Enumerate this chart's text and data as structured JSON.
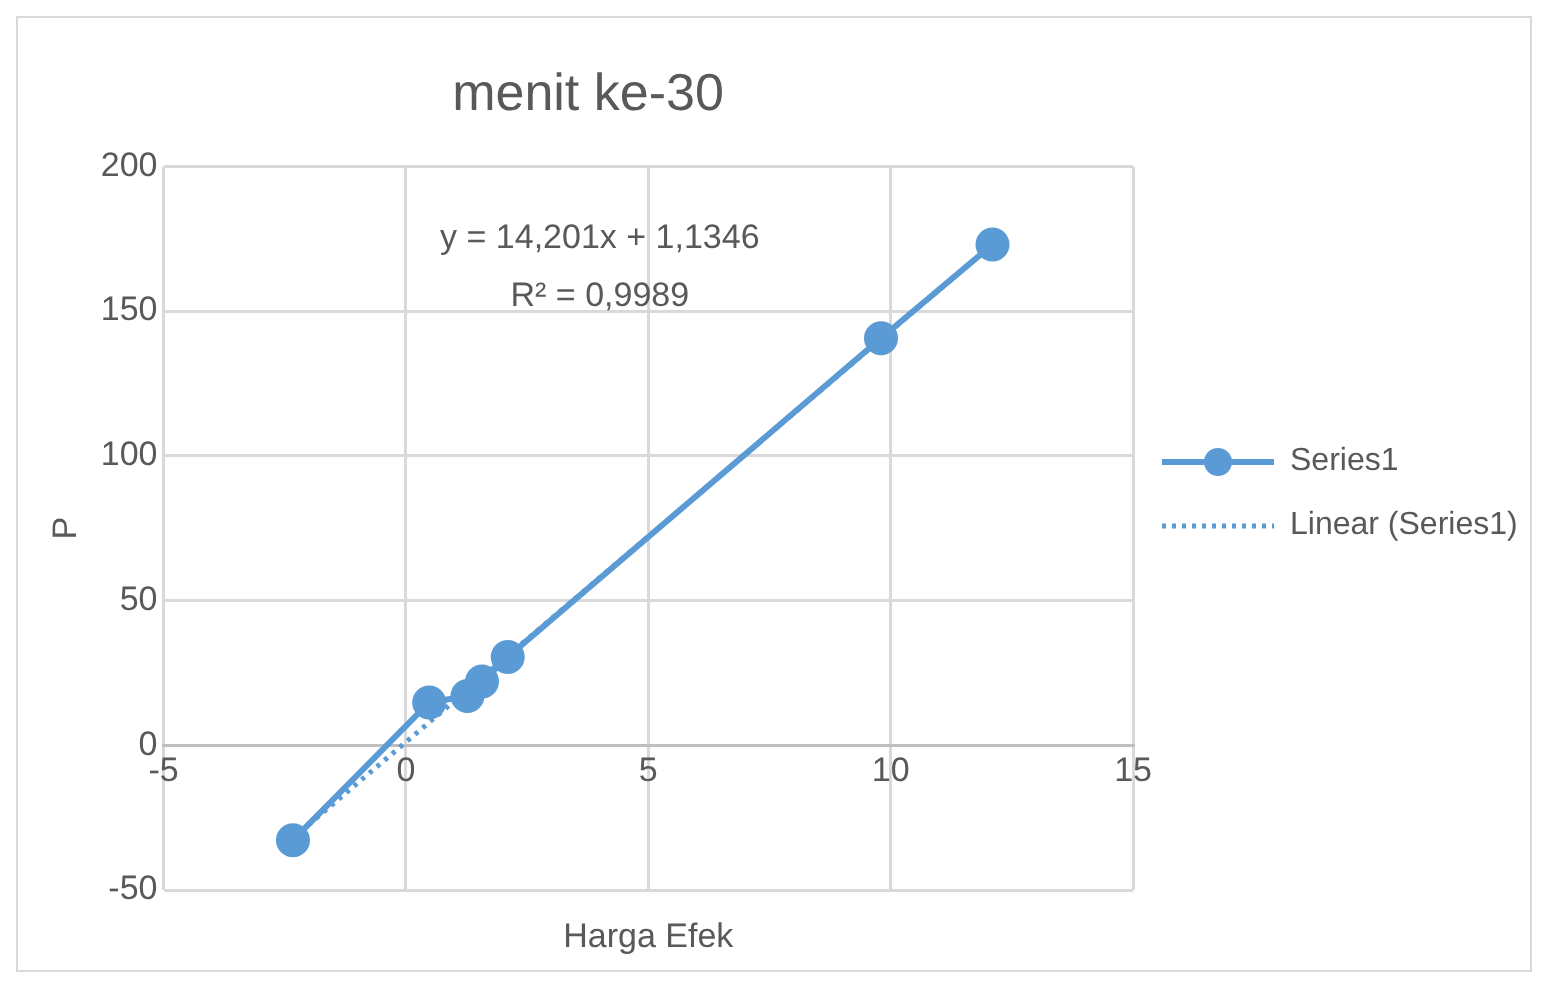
{
  "chart_data": {
    "type": "line",
    "title": "menit ke-30",
    "xlabel": "Harga Efek",
    "ylabel": "P",
    "x": [
      -2.33,
      0.48,
      1.27,
      1.57,
      2.1,
      9.8,
      12.1
    ],
    "series": [
      {
        "name": "Series1",
        "color": "#5b9bd5",
        "values": [
          -32.8,
          14.8,
          17,
          22,
          30.5,
          140.6,
          173
        ],
        "marker": "circle",
        "line_style": "solid"
      },
      {
        "name": "Linear (Series1)",
        "color": "#5b9bd5",
        "x": [
          -2.33,
          12.1
        ],
        "values": [
          -32,
          173
        ],
        "marker": "none",
        "line_style": "dotted"
      }
    ],
    "xlim": [
      -5,
      15
    ],
    "xticks": [
      -5,
      0,
      5,
      10,
      15
    ],
    "ylim": [
      -50,
      200
    ],
    "yticks": [
      -50,
      0,
      50,
      100,
      150,
      200
    ],
    "grid": true,
    "legend": "right",
    "annotations": [
      "y = 14,201x + 1,1346",
      "R² = 0,9989"
    ]
  }
}
